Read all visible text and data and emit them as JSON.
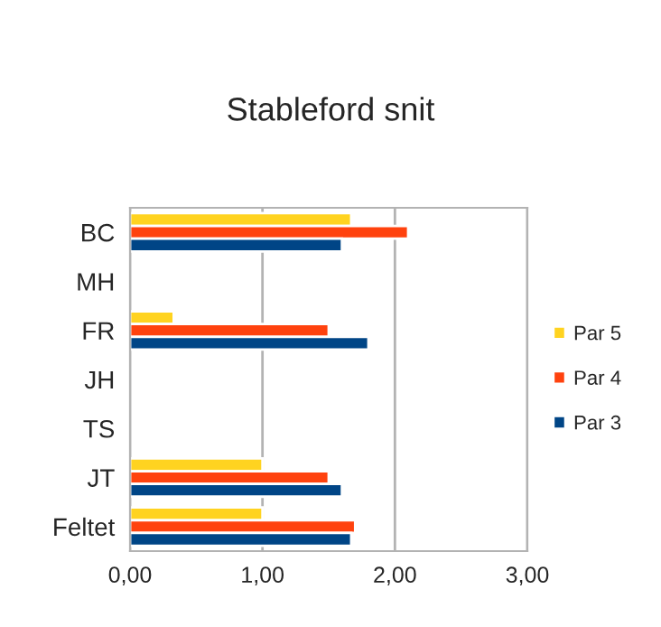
{
  "chart_data": {
    "type": "bar",
    "orientation": "horizontal",
    "title": "Stableford snit",
    "categories": [
      "BC",
      "MH",
      "FR",
      "JH",
      "TS",
      "JT",
      "Feltet"
    ],
    "series": [
      {
        "name": "Par 5",
        "color": "#ffd320",
        "values": [
          1.67,
          null,
          0.33,
          null,
          null,
          1.0,
          1.0
        ]
      },
      {
        "name": "Par 4",
        "color": "#ff420e",
        "values": [
          2.1,
          null,
          1.5,
          null,
          null,
          1.5,
          1.7
        ]
      },
      {
        "name": "Par 3",
        "color": "#004586",
        "values": [
          1.6,
          null,
          1.8,
          null,
          null,
          1.6,
          1.67
        ]
      }
    ],
    "xlim": [
      0,
      3
    ],
    "xticks": [
      {
        "value": 0,
        "label": "0,00"
      },
      {
        "value": 1,
        "label": "1,00"
      },
      {
        "value": 2,
        "label": "2,00"
      },
      {
        "value": 3,
        "label": "3,00"
      }
    ],
    "grid": "x",
    "legend": "right"
  }
}
